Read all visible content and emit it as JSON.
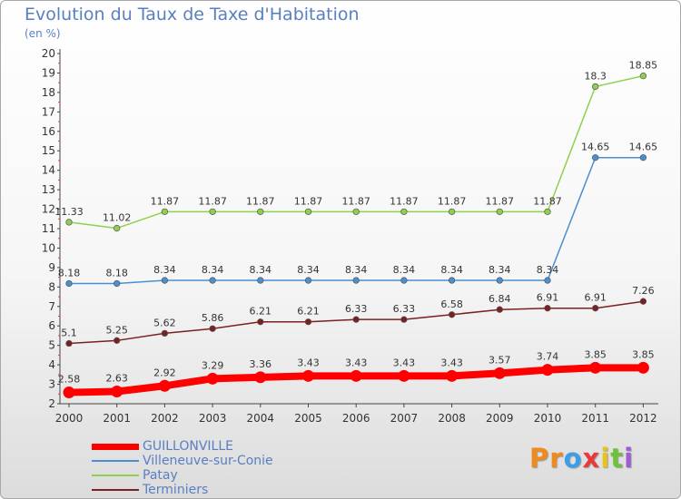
{
  "header": {
    "title": "Evolution du Taux de Taxe d'Habitation",
    "unit": "(en %)"
  },
  "logo": {
    "text": "Proxiti",
    "letters": [
      "P",
      "r",
      "o",
      "x",
      "i",
      "t",
      "i"
    ],
    "colors": [
      "#f08a1c",
      "#f08a1c",
      "#3a9ee8",
      "#e83a3a",
      "#e8c31c",
      "#6cc23a",
      "#a05ad8"
    ]
  },
  "chart_data": {
    "type": "line",
    "title": "Evolution du Taux de Taxe d'Habitation",
    "ylabel": "(en %)",
    "xlabel": "",
    "x": [
      "2000",
      "2001",
      "2002",
      "2003",
      "2004",
      "2005",
      "2006",
      "2007",
      "2008",
      "2009",
      "2010",
      "2011",
      "2012"
    ],
    "ylim": [
      2,
      20
    ],
    "yticks": [
      "2",
      "3",
      "4",
      "5",
      "6",
      "7",
      "8",
      "9",
      "10",
      "11",
      "12",
      "13",
      "14",
      "15",
      "16",
      "17",
      "18",
      "19",
      "20"
    ],
    "grid": false,
    "legend_position": "bottom-left",
    "series": [
      {
        "name": "GUILLONVILLE",
        "color": "#ff0000",
        "values": [
          2.58,
          2.63,
          2.92,
          3.29,
          3.36,
          3.43,
          3.43,
          3.43,
          3.43,
          3.57,
          3.74,
          3.85,
          3.85
        ],
        "labels": [
          "2.58",
          "2.63",
          "2.92",
          "3.29",
          "3.36",
          "3.43",
          "3.43",
          "3.43",
          "3.43",
          "3.57",
          "3.74",
          "3.85",
          "3.85"
        ]
      },
      {
        "name": "Villeneuve-sur-Conie",
        "color": "#4a90d0",
        "values": [
          8.18,
          8.18,
          8.34,
          8.34,
          8.34,
          8.34,
          8.34,
          8.34,
          8.34,
          8.34,
          8.34,
          14.65,
          14.65
        ],
        "labels": [
          "8.18",
          "8.18",
          "8.34",
          "8.34",
          "8.34",
          "8.34",
          "8.34",
          "8.34",
          "8.34",
          "8.34",
          "8.34",
          "14.65",
          "14.65"
        ]
      },
      {
        "name": "Patay",
        "color": "#90d050",
        "values": [
          11.33,
          11.02,
          11.87,
          11.87,
          11.87,
          11.87,
          11.87,
          11.87,
          11.87,
          11.87,
          11.87,
          18.3,
          18.85
        ],
        "labels": [
          "11.33",
          "11.02",
          "11.87",
          "11.87",
          "11.87",
          "11.87",
          "11.87",
          "11.87",
          "11.87",
          "11.87",
          "11.87",
          "18.3",
          "18.85"
        ]
      },
      {
        "name": "Terminiers",
        "color": "#7a2020",
        "values": [
          5.1,
          5.25,
          5.62,
          5.86,
          6.21,
          6.21,
          6.33,
          6.33,
          6.58,
          6.84,
          6.91,
          6.91,
          7.26
        ],
        "labels": [
          "5.1",
          "5.25",
          "5.62",
          "5.86",
          "6.21",
          "6.21",
          "6.33",
          "6.33",
          "6.58",
          "6.84",
          "6.91",
          "6.91",
          "7.26"
        ]
      }
    ]
  }
}
